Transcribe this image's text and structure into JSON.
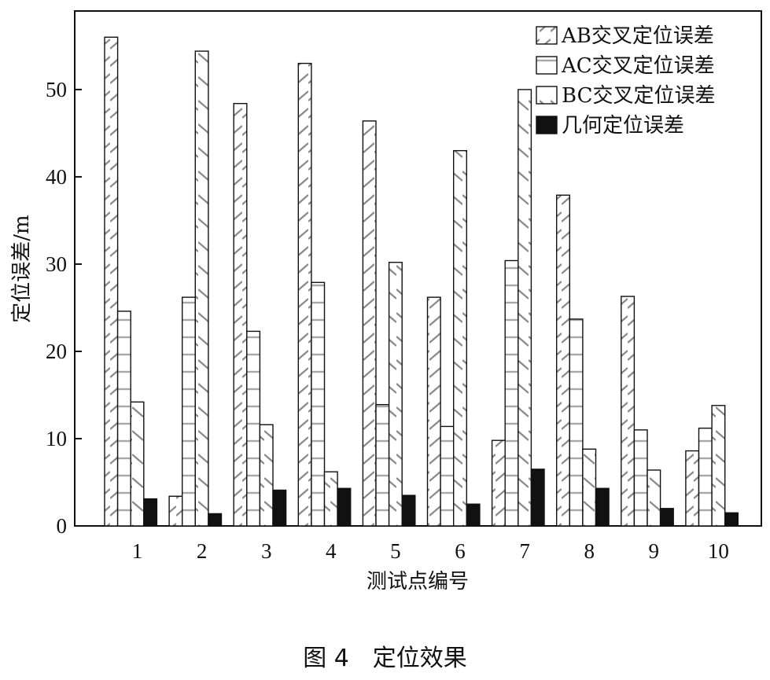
{
  "chart_data": {
    "type": "bar",
    "ylabel": "定位误差/m",
    "xlabel": "测试点编号",
    "categories": [
      "1",
      "2",
      "3",
      "4",
      "5",
      "6",
      "7",
      "8",
      "9",
      "10"
    ],
    "ylim": [
      0,
      59
    ],
    "yticks": [
      0,
      10,
      20,
      30,
      40,
      50
    ],
    "legend_position": "top-right",
    "series": [
      {
        "name": "AB交叉定位误差",
        "pattern": "diagonal-hatch",
        "values": [
          56.0,
          3.4,
          48.4,
          53.0,
          46.4,
          26.2,
          9.8,
          37.9,
          26.3,
          8.6
        ]
      },
      {
        "name": "AC交叉定位误差",
        "pattern": "horizontal-hatch",
        "values": [
          24.6,
          26.2,
          22.3,
          27.9,
          13.9,
          11.4,
          30.4,
          23.7,
          11.0,
          11.2
        ]
      },
      {
        "name": "BC交叉定位误差",
        "pattern": "backslash-hatch",
        "values": [
          14.2,
          54.4,
          11.6,
          6.2,
          30.2,
          43.0,
          50.0,
          8.8,
          6.4,
          13.8
        ]
      },
      {
        "name": "几何定位误差",
        "pattern": "solid",
        "color": "#111111",
        "values": [
          3.1,
          1.4,
          4.1,
          4.3,
          3.5,
          2.5,
          6.5,
          4.3,
          2.0,
          1.5
        ]
      }
    ]
  },
  "caption": "图 4　定位效果"
}
